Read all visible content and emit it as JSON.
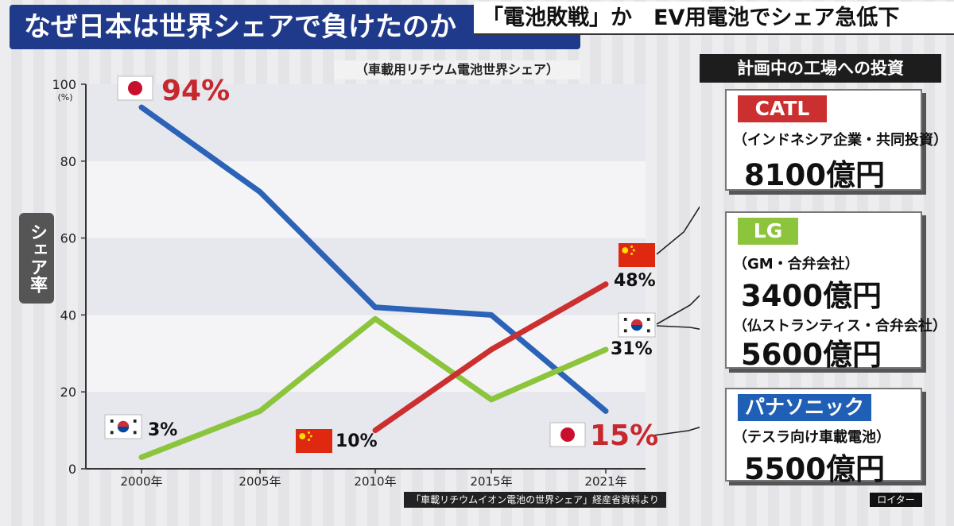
{
  "header": {
    "headline": "なぜ日本は世界シェアで負けたのか",
    "banner": "「電池敗戦」か　EV用電池でシェア急低下",
    "subtitle": "（車載用リチウム電池世界シェア）"
  },
  "colors": {
    "japan": "#2b63b8",
    "china": "#cc2f2f",
    "korea": "#8cc43c",
    "catl_badge": "#cc2f2f",
    "lg_badge": "#8cc43c",
    "panasonic_badge": "#1f5fb5",
    "value_red": "#c6282d"
  },
  "chart_data": {
    "type": "line",
    "categories": [
      "2000年",
      "2005年",
      "2010年",
      "2015年",
      "2021年"
    ],
    "y_ticks": [
      "0",
      "20",
      "40",
      "60",
      "80",
      "100"
    ],
    "y_unit": "(%)",
    "ylabel": "シェア率",
    "ylim": [
      0,
      100
    ],
    "grid": true,
    "series": [
      {
        "name": "Japan",
        "flag": "japan",
        "color": "#2b63b8",
        "values": [
          94,
          72,
          42,
          40,
          15
        ]
      },
      {
        "name": "Korea",
        "flag": "korea",
        "color": "#8cc43c",
        "values": [
          3,
          15,
          39,
          18,
          31
        ]
      },
      {
        "name": "China",
        "flag": "china",
        "color": "#cc2f2f",
        "values": [
          null,
          null,
          10,
          31,
          48
        ]
      }
    ],
    "labels": [
      {
        "text": "94%",
        "series": "Japan",
        "at": "start"
      },
      {
        "text": "3%",
        "series": "Korea",
        "at": "start"
      },
      {
        "text": "10%",
        "series": "China",
        "at": "start"
      },
      {
        "text": "48%",
        "series": "China",
        "at": "end"
      },
      {
        "text": "31%",
        "series": "Korea",
        "at": "end"
      },
      {
        "text": "15%",
        "series": "Japan",
        "at": "end"
      }
    ]
  },
  "sidebar": {
    "title": "計画中の工場への投資",
    "catl": {
      "name": "CATL",
      "desc": "（インドネシア企業・共同投資）",
      "amount": "8100億円"
    },
    "lg": {
      "name": "LG",
      "desc1": "（GM・合弁会社）",
      "amount1": "3400億円",
      "desc2": "（仏ストランティス・合弁会社）",
      "amount2": "5600億円"
    },
    "panasonic": {
      "name": "パナソニック",
      "desc": "（テスラ向け車載電池）",
      "amount": "5500億円"
    }
  },
  "footer": {
    "source": "「車載リチウムイオン電池の世界シェア」経産省資料より",
    "credit": "ロイター"
  }
}
